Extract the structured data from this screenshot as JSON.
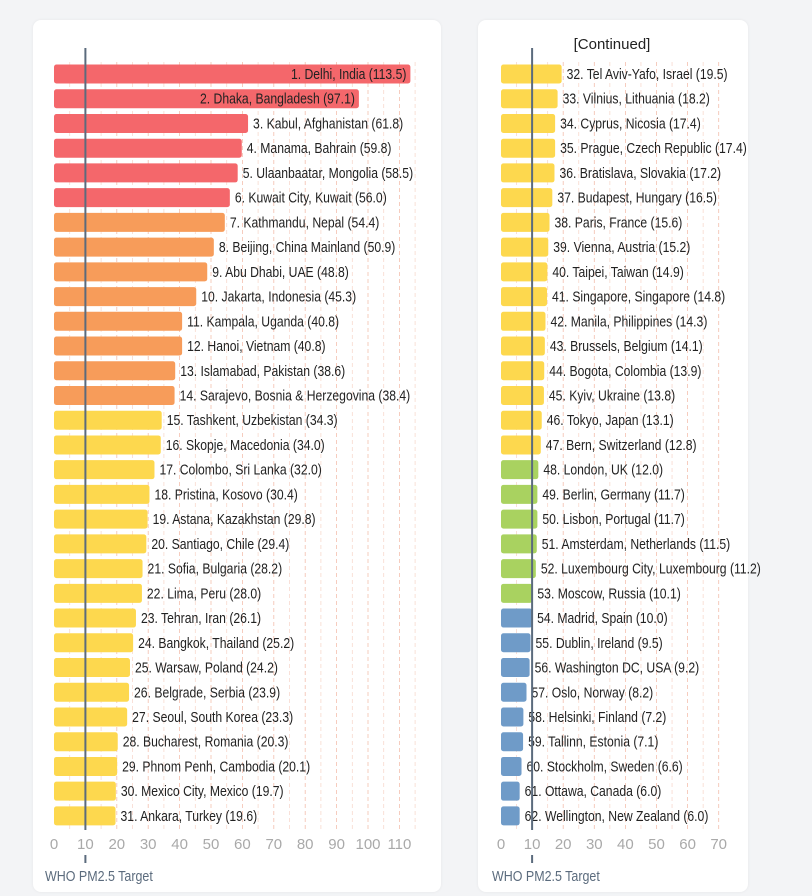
{
  "colors": {
    "red": "#f4676b",
    "orange": "#f79c5a",
    "yellow": "#fdd84e",
    "green": "#a9d260",
    "blue": "#6f9bc8",
    "target_line": "#5b6b7d",
    "grid": "#f2b9a6"
  },
  "chart_data": [
    {
      "type": "bar",
      "orientation": "horizontal",
      "title": "",
      "xlim": [
        0,
        115
      ],
      "ticks": [
        0,
        10,
        20,
        30,
        40,
        50,
        60,
        70,
        80,
        90,
        100,
        110
      ],
      "grid": true,
      "reference_line": {
        "value": 10,
        "label": "WHO PM2.5 Target"
      },
      "items": [
        {
          "label": "1. Delhi, India (113.5)",
          "value": 113.5,
          "level": "red"
        },
        {
          "label": "2. Dhaka, Bangladesh (97.1)",
          "value": 97.1,
          "level": "red"
        },
        {
          "label": "3. Kabul, Afghanistan (61.8)",
          "value": 61.8,
          "level": "red"
        },
        {
          "label": "4. Manama, Bahrain (59.8)",
          "value": 59.8,
          "level": "red"
        },
        {
          "label": "5. Ulaanbaatar, Mongolia (58.5)",
          "value": 58.5,
          "level": "red"
        },
        {
          "label": "6. Kuwait City, Kuwait (56.0)",
          "value": 56.0,
          "level": "red"
        },
        {
          "label": "7. Kathmandu, Nepal (54.4)",
          "value": 54.4,
          "level": "orange"
        },
        {
          "label": "8. Beijing, China Mainland (50.9)",
          "value": 50.9,
          "level": "orange"
        },
        {
          "label": "9. Abu Dhabi, UAE (48.8)",
          "value": 48.8,
          "level": "orange"
        },
        {
          "label": "10. Jakarta, Indonesia (45.3)",
          "value": 45.3,
          "level": "orange"
        },
        {
          "label": "11. Kampala, Uganda (40.8)",
          "value": 40.8,
          "level": "orange"
        },
        {
          "label": "12. Hanoi, Vietnam (40.8)",
          "value": 40.8,
          "level": "orange"
        },
        {
          "label": "13. Islamabad, Pakistan (38.6)",
          "value": 38.6,
          "level": "orange"
        },
        {
          "label": "14. Sarajevo, Bosnia & Herzegovina (38.4)",
          "value": 38.4,
          "level": "orange"
        },
        {
          "label": "15. Tashkent, Uzbekistan (34.3)",
          "value": 34.3,
          "level": "yellow"
        },
        {
          "label": "16. Skopje, Macedonia (34.0)",
          "value": 34.0,
          "level": "yellow"
        },
        {
          "label": "17. Colombo, Sri Lanka (32.0)",
          "value": 32.0,
          "level": "yellow"
        },
        {
          "label": "18. Pristina, Kosovo (30.4)",
          "value": 30.4,
          "level": "yellow"
        },
        {
          "label": "19. Astana, Kazakhstan (29.8)",
          "value": 29.8,
          "level": "yellow"
        },
        {
          "label": "20. Santiago, Chile (29.4)",
          "value": 29.4,
          "level": "yellow"
        },
        {
          "label": "21. Sofia, Bulgaria (28.2)",
          "value": 28.2,
          "level": "yellow"
        },
        {
          "label": "22. Lima, Peru (28.0)",
          "value": 28.0,
          "level": "yellow"
        },
        {
          "label": "23. Tehran, Iran (26.1)",
          "value": 26.1,
          "level": "yellow"
        },
        {
          "label": "24. Bangkok, Thailand (25.2)",
          "value": 25.2,
          "level": "yellow"
        },
        {
          "label": "25. Warsaw, Poland (24.2)",
          "value": 24.2,
          "level": "yellow"
        },
        {
          "label": "26. Belgrade, Serbia (23.9)",
          "value": 23.9,
          "level": "yellow"
        },
        {
          "label": "27. Seoul, South Korea (23.3)",
          "value": 23.3,
          "level": "yellow"
        },
        {
          "label": "28. Bucharest, Romania (20.3)",
          "value": 20.3,
          "level": "yellow"
        },
        {
          "label": "29. Phnom Penh, Cambodia (20.1)",
          "value": 20.1,
          "level": "yellow"
        },
        {
          "label": "30. Mexico City, Mexico (19.7)",
          "value": 19.7,
          "level": "yellow"
        },
        {
          "label": "31. Ankara, Turkey (19.6)",
          "value": 19.6,
          "level": "yellow"
        }
      ]
    },
    {
      "type": "bar",
      "orientation": "horizontal",
      "title": "[Continued]",
      "xlim": [
        0,
        72
      ],
      "ticks": [
        0,
        10,
        20,
        30,
        40,
        50,
        60,
        70
      ],
      "grid": true,
      "reference_line": {
        "value": 10,
        "label": "WHO PM2.5 Target"
      },
      "items": [
        {
          "label": "32. Tel Aviv-Yafo, Israel (19.5)",
          "value": 19.5,
          "level": "yellow"
        },
        {
          "label": "33. Vilnius, Lithuania (18.2)",
          "value": 18.2,
          "level": "yellow"
        },
        {
          "label": "34. Cyprus, Nicosia (17.4)",
          "value": 17.4,
          "level": "yellow"
        },
        {
          "label": "35. Prague, Czech Republic (17.4)",
          "value": 17.4,
          "level": "yellow"
        },
        {
          "label": "36. Bratislava, Slovakia (17.2)",
          "value": 17.2,
          "level": "yellow"
        },
        {
          "label": "37. Budapest, Hungary (16.5)",
          "value": 16.5,
          "level": "yellow"
        },
        {
          "label": "38. Paris, France (15.6)",
          "value": 15.6,
          "level": "yellow"
        },
        {
          "label": "39. Vienna, Austria (15.2)",
          "value": 15.2,
          "level": "yellow"
        },
        {
          "label": "40. Taipei, Taiwan (14.9)",
          "value": 14.9,
          "level": "yellow"
        },
        {
          "label": "41. Singapore, Singapore (14.8)",
          "value": 14.8,
          "level": "yellow"
        },
        {
          "label": "42. Manila, Philippines (14.3)",
          "value": 14.3,
          "level": "yellow"
        },
        {
          "label": "43. Brussels, Belgium (14.1)",
          "value": 14.1,
          "level": "yellow"
        },
        {
          "label": "44. Bogota, Colombia (13.9)",
          "value": 13.9,
          "level": "yellow"
        },
        {
          "label": "45. Kyiv, Ukraine (13.8)",
          "value": 13.8,
          "level": "yellow"
        },
        {
          "label": "46. Tokyo, Japan (13.1)",
          "value": 13.1,
          "level": "yellow"
        },
        {
          "label": "47. Bern, Switzerland (12.8)",
          "value": 12.8,
          "level": "yellow"
        },
        {
          "label": "48. London, UK (12.0)",
          "value": 12.0,
          "level": "green"
        },
        {
          "label": "49. Berlin, Germany (11.7)",
          "value": 11.7,
          "level": "green"
        },
        {
          "label": "50. Lisbon, Portugal (11.7)",
          "value": 11.7,
          "level": "green"
        },
        {
          "label": "51. Amsterdam, Netherlands (11.5)",
          "value": 11.5,
          "level": "green"
        },
        {
          "label": "52. Luxembourg City, Luxembourg (11.2)",
          "value": 11.2,
          "level": "green"
        },
        {
          "label": "53. Moscow, Russia (10.1)",
          "value": 10.1,
          "level": "green"
        },
        {
          "label": "54. Madrid, Spain (10.0)",
          "value": 10.0,
          "level": "blue"
        },
        {
          "label": "55. Dublin, Ireland (9.5)",
          "value": 9.5,
          "level": "blue"
        },
        {
          "label": "56. Washington DC, USA (9.2)",
          "value": 9.2,
          "level": "blue"
        },
        {
          "label": "57. Oslo, Norway (8.2)",
          "value": 8.2,
          "level": "blue"
        },
        {
          "label": "58. Helsinki, Finland (7.2)",
          "value": 7.2,
          "level": "blue"
        },
        {
          "label": "59. Tallinn, Estonia (7.1)",
          "value": 7.1,
          "level": "blue"
        },
        {
          "label": "60. Stockholm, Sweden (6.6)",
          "value": 6.6,
          "level": "blue"
        },
        {
          "label": "61. Ottawa, Canada (6.0)",
          "value": 6.0,
          "level": "blue"
        },
        {
          "label": "62. Wellington, New Zealand (6.0)",
          "value": 6.0,
          "level": "blue"
        }
      ]
    }
  ]
}
